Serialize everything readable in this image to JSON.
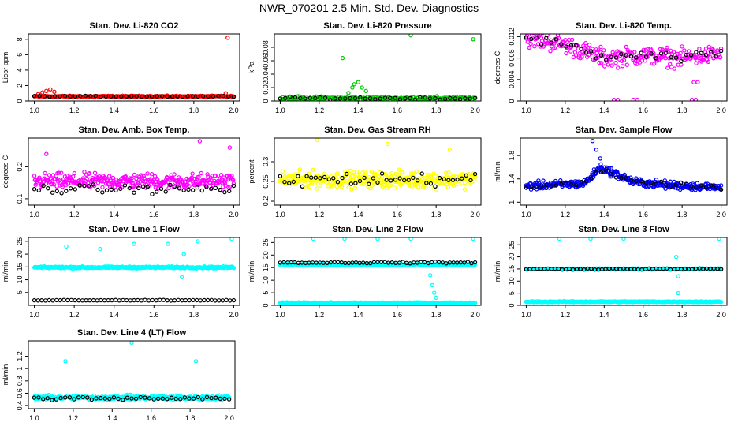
{
  "title": "NWR_070201  2.5 Min. Std. Dev. Diagnostics",
  "colors": {
    "red": "#ff0000",
    "green": "#00cc00",
    "magenta": "#ff00ff",
    "yellow": "#ffff00",
    "blue": "#0000ff",
    "cyan": "#00ffff",
    "black": "#000000"
  },
  "chart_data": [
    {
      "type": "scatter",
      "title": "Stan. Dev. Li-820 CO2",
      "ylabel": "Licor ppm",
      "xlim": [
        0.97,
        2.03
      ],
      "ylim": [
        0,
        8.7
      ],
      "xticks": [
        "1.0",
        "1.2",
        "1.4",
        "1.6",
        "1.8",
        "2.0"
      ],
      "yticks": [
        0,
        2,
        4,
        6,
        8
      ],
      "series": [
        {
          "name": "all",
          "color": "red",
          "base": 0.6,
          "spread": 0.12,
          "n": 220,
          "extra": [
            [
              1.02,
              0.9
            ],
            [
              1.04,
              1.1
            ],
            [
              1.06,
              1.3
            ],
            [
              1.08,
              1.5
            ],
            [
              1.1,
              1.2
            ],
            [
              1.97,
              8.2
            ],
            [
              1.96,
              1.0
            ]
          ]
        },
        {
          "name": "selected",
          "color": "black",
          "base": 0.6,
          "spread": 0.08,
          "n": 40,
          "extra": []
        }
      ]
    },
    {
      "type": "scatter",
      "title": "Stan. Dev. Li-820 Pressure",
      "ylabel": "kPa",
      "xlim": [
        0.97,
        2.03
      ],
      "ylim": [
        0,
        0.1
      ],
      "xticks": [
        "1.0",
        "1.2",
        "1.4",
        "1.6",
        "1.8",
        "2.0"
      ],
      "yticks": [
        0.0,
        0.02,
        0.04,
        0.06,
        0.08
      ],
      "series": [
        {
          "name": "all",
          "color": "green",
          "base": 0.004,
          "spread": 0.004,
          "n": 220,
          "extra": [
            [
              1.32,
              0.064
            ],
            [
              1.35,
              0.012
            ],
            [
              1.37,
              0.02
            ],
            [
              1.38,
              0.025
            ],
            [
              1.4,
              0.028
            ],
            [
              1.42,
              0.02
            ],
            [
              1.44,
              0.015
            ],
            [
              1.67,
              0.098
            ],
            [
              1.99,
              0.092
            ]
          ]
        },
        {
          "name": "selected",
          "color": "black",
          "base": 0.004,
          "spread": 0.003,
          "n": 40,
          "extra": []
        }
      ]
    },
    {
      "type": "scatter",
      "title": "Stan. Dev. Li-820 Temp.",
      "ylabel": "degrees C",
      "xlim": [
        0.97,
        2.03
      ],
      "ylim": [
        0,
        0.0125
      ],
      "xticks": [
        "1.0",
        "1.2",
        "1.4",
        "1.6",
        "1.8",
        "2.0"
      ],
      "yticks": [
        0.0,
        0.004,
        0.008,
        0.012
      ],
      "series": [
        {
          "name": "all",
          "color": "magenta",
          "base": 0.009,
          "spread": 0.0025,
          "n": 260,
          "trend": [
            [
              1.0,
              0.0118
            ],
            [
              1.2,
              0.0105
            ],
            [
              1.4,
              0.008
            ],
            [
              1.6,
              0.0085
            ],
            [
              1.8,
              0.008
            ],
            [
              2.0,
              0.0088
            ]
          ],
          "extra": [
            [
              1.45,
              0.0002
            ],
            [
              1.47,
              0.0002
            ],
            [
              1.55,
              0.0002
            ],
            [
              1.57,
              0.0002
            ],
            [
              1.85,
              0.0002
            ],
            [
              1.87,
              0.0002
            ],
            [
              1.86,
              0.0035
            ],
            [
              1.88,
              0.0035
            ]
          ]
        },
        {
          "name": "selected",
          "color": "black",
          "base": 0.009,
          "spread": 0.0012,
          "n": 40,
          "trend": [
            [
              1.0,
              0.0118
            ],
            [
              1.2,
              0.0105
            ],
            [
              1.4,
              0.008
            ],
            [
              1.6,
              0.0085
            ],
            [
              1.8,
              0.008
            ],
            [
              2.0,
              0.0088
            ]
          ],
          "extra": []
        }
      ]
    },
    {
      "type": "scatter",
      "title": "Stan. Dev. Amb. Box Temp.",
      "ylabel": "degrees C",
      "xlim": [
        0.97,
        2.03
      ],
      "ylim": [
        0.08,
        0.29
      ],
      "xticks": [
        "1.0",
        "1.2",
        "1.4",
        "1.6",
        "1.8",
        "2.0"
      ],
      "yticks": [
        0.1,
        0.2
      ],
      "series": [
        {
          "name": "all",
          "color": "magenta",
          "base": 0.155,
          "spread": 0.035,
          "n": 320,
          "extra": [
            [
              1.83,
              0.28
            ],
            [
              1.98,
              0.26
            ],
            [
              1.06,
              0.24
            ]
          ]
        },
        {
          "name": "selected",
          "color": "black",
          "base": 0.13,
          "spread": 0.02,
          "n": 45,
          "extra": []
        }
      ]
    },
    {
      "type": "scatter",
      "title": "Stan. Dev. Gas Stream RH",
      "ylabel": "percent",
      "xlim": [
        0.97,
        2.03
      ],
      "ylim": [
        0.19,
        0.36
      ],
      "xticks": [
        "1.0",
        "1.2",
        "1.4",
        "1.6",
        "1.8",
        "2.0"
      ],
      "yticks": [
        0.2,
        0.25,
        0.3
      ],
      "series": [
        {
          "name": "all",
          "color": "yellow",
          "base": 0.255,
          "spread": 0.03,
          "n": 340,
          "extra": [
            [
              1.19,
              0.355
            ],
            [
              1.55,
              0.345
            ],
            [
              1.87,
              0.33
            ]
          ]
        },
        {
          "name": "selected",
          "color": "black",
          "base": 0.255,
          "spread": 0.025,
          "n": 45,
          "extra": []
        }
      ]
    },
    {
      "type": "scatter",
      "title": "Stan. Dev. Sample Flow",
      "ylabel": "ml/min",
      "xlim": [
        0.97,
        2.03
      ],
      "ylim": [
        0.95,
        2.1
      ],
      "xticks": [
        "1.0",
        "1.2",
        "1.4",
        "1.6",
        "1.8",
        "2.0"
      ],
      "yticks": [
        1.0,
        1.4,
        1.8
      ],
      "series": [
        {
          "name": "all",
          "color": "blue",
          "base": 1.28,
          "spread": 0.1,
          "n": 320,
          "trend": [
            [
              1.0,
              1.28
            ],
            [
              1.3,
              1.32
            ],
            [
              1.38,
              1.6
            ],
            [
              1.45,
              1.5
            ],
            [
              1.55,
              1.35
            ],
            [
              1.7,
              1.3
            ],
            [
              2.0,
              1.25
            ]
          ],
          "extra": [
            [
              1.34,
              2.05
            ],
            [
              1.36,
              1.9
            ],
            [
              1.38,
              1.75
            ]
          ]
        },
        {
          "name": "selected",
          "color": "black",
          "base": 1.28,
          "spread": 0.05,
          "n": 40,
          "trend": [
            [
              1.0,
              1.28
            ],
            [
              1.3,
              1.32
            ],
            [
              1.38,
              1.55
            ],
            [
              1.45,
              1.45
            ],
            [
              1.55,
              1.35
            ],
            [
              2.0,
              1.25
            ]
          ],
          "extra": []
        }
      ]
    },
    {
      "type": "scatter",
      "title": "Stan. Dev. Line 1 Flow",
      "ylabel": "ml/min",
      "xlim": [
        0.97,
        2.03
      ],
      "ylim": [
        0,
        26.5
      ],
      "xticks": [
        "1.0",
        "1.2",
        "1.4",
        "1.6",
        "1.8",
        "2.0"
      ],
      "yticks": [
        5,
        10,
        15,
        20,
        25
      ],
      "series": [
        {
          "name": "all",
          "color": "cyan",
          "base": 14.8,
          "spread": 0.5,
          "n": 320,
          "extra": [
            [
              1.16,
              23
            ],
            [
              1.33,
              22
            ],
            [
              1.5,
              24
            ],
            [
              1.67,
              24
            ],
            [
              1.75,
              20
            ],
            [
              1.82,
              25
            ],
            [
              1.74,
              11
            ],
            [
              1.99,
              26
            ]
          ]
        },
        {
          "name": "selected",
          "color": "black",
          "base": 2.0,
          "spread": 0.2,
          "n": 55,
          "extra": []
        }
      ]
    },
    {
      "type": "scatter",
      "title": "Stan. Dev. Line 2 Flow",
      "ylabel": "ml/min",
      "xlim": [
        0.97,
        2.03
      ],
      "ylim": [
        0,
        27
      ],
      "xticks": [
        "1.0",
        "1.2",
        "1.4",
        "1.6",
        "1.8",
        "2.0"
      ],
      "yticks": [
        0,
        5,
        10,
        15,
        20,
        25
      ],
      "series": [
        {
          "name": "upper",
          "color": "cyan",
          "base": 16.2,
          "spread": 0.5,
          "n": 260,
          "extra": [
            [
              1.17,
              26.5
            ],
            [
              1.33,
              26.5
            ],
            [
              1.5,
              26.5
            ],
            [
              1.67,
              26.5
            ],
            [
              1.77,
              12
            ],
            [
              1.78,
              8
            ],
            [
              1.79,
              5
            ],
            [
              1.8,
              3
            ],
            [
              1.99,
              26.5
            ]
          ]
        },
        {
          "name": "lower",
          "color": "cyan",
          "base": 1.0,
          "spread": 0.3,
          "n": 260,
          "extra": []
        },
        {
          "name": "selected",
          "color": "black",
          "base": 17.0,
          "spread": 0.4,
          "n": 55,
          "extra": []
        }
      ]
    },
    {
      "type": "scatter",
      "title": "Stan. Dev. Line 3 Flow",
      "ylabel": "ml/min",
      "xlim": [
        0.97,
        2.03
      ],
      "ylim": [
        0,
        28
      ],
      "xticks": [
        "1.0",
        "1.2",
        "1.4",
        "1.6",
        "1.8",
        "2.0"
      ],
      "yticks": [
        0,
        5,
        10,
        15,
        20,
        25
      ],
      "series": [
        {
          "name": "upper",
          "color": "cyan",
          "base": 15.0,
          "spread": 0.4,
          "n": 240,
          "extra": [
            [
              1.17,
              27.5
            ],
            [
              1.33,
              27.5
            ],
            [
              1.5,
              27.5
            ],
            [
              1.77,
              20
            ],
            [
              1.76,
              15
            ],
            [
              1.78,
              12
            ],
            [
              1.78,
              5
            ],
            [
              1.99,
              27.5
            ]
          ]
        },
        {
          "name": "lower",
          "color": "cyan",
          "base": 1.5,
          "spread": 0.3,
          "n": 260,
          "extra": []
        },
        {
          "name": "selected",
          "color": "black",
          "base": 15.0,
          "spread": 0.4,
          "n": 55,
          "extra": []
        }
      ]
    },
    {
      "type": "scatter",
      "title": "Stan. Dev. Line 4 (LT) Flow",
      "ylabel": "ml/min",
      "xlim": [
        0.97,
        2.03
      ],
      "ylim": [
        0.35,
        1.45
      ],
      "xticks": [
        "1.0",
        "1.2",
        "1.4",
        "1.6",
        "1.8",
        "2.0"
      ],
      "yticks": [
        0.4,
        0.6,
        0.8,
        1.0,
        1.2
      ],
      "series": [
        {
          "name": "all",
          "color": "cyan",
          "base": 0.53,
          "spread": 0.05,
          "n": 320,
          "extra": [
            [
              1.16,
              1.12
            ],
            [
              1.5,
              1.42
            ],
            [
              1.83,
              1.12
            ]
          ]
        },
        {
          "name": "selected",
          "color": "black",
          "base": 0.52,
          "spread": 0.04,
          "n": 45,
          "extra": []
        }
      ]
    }
  ]
}
